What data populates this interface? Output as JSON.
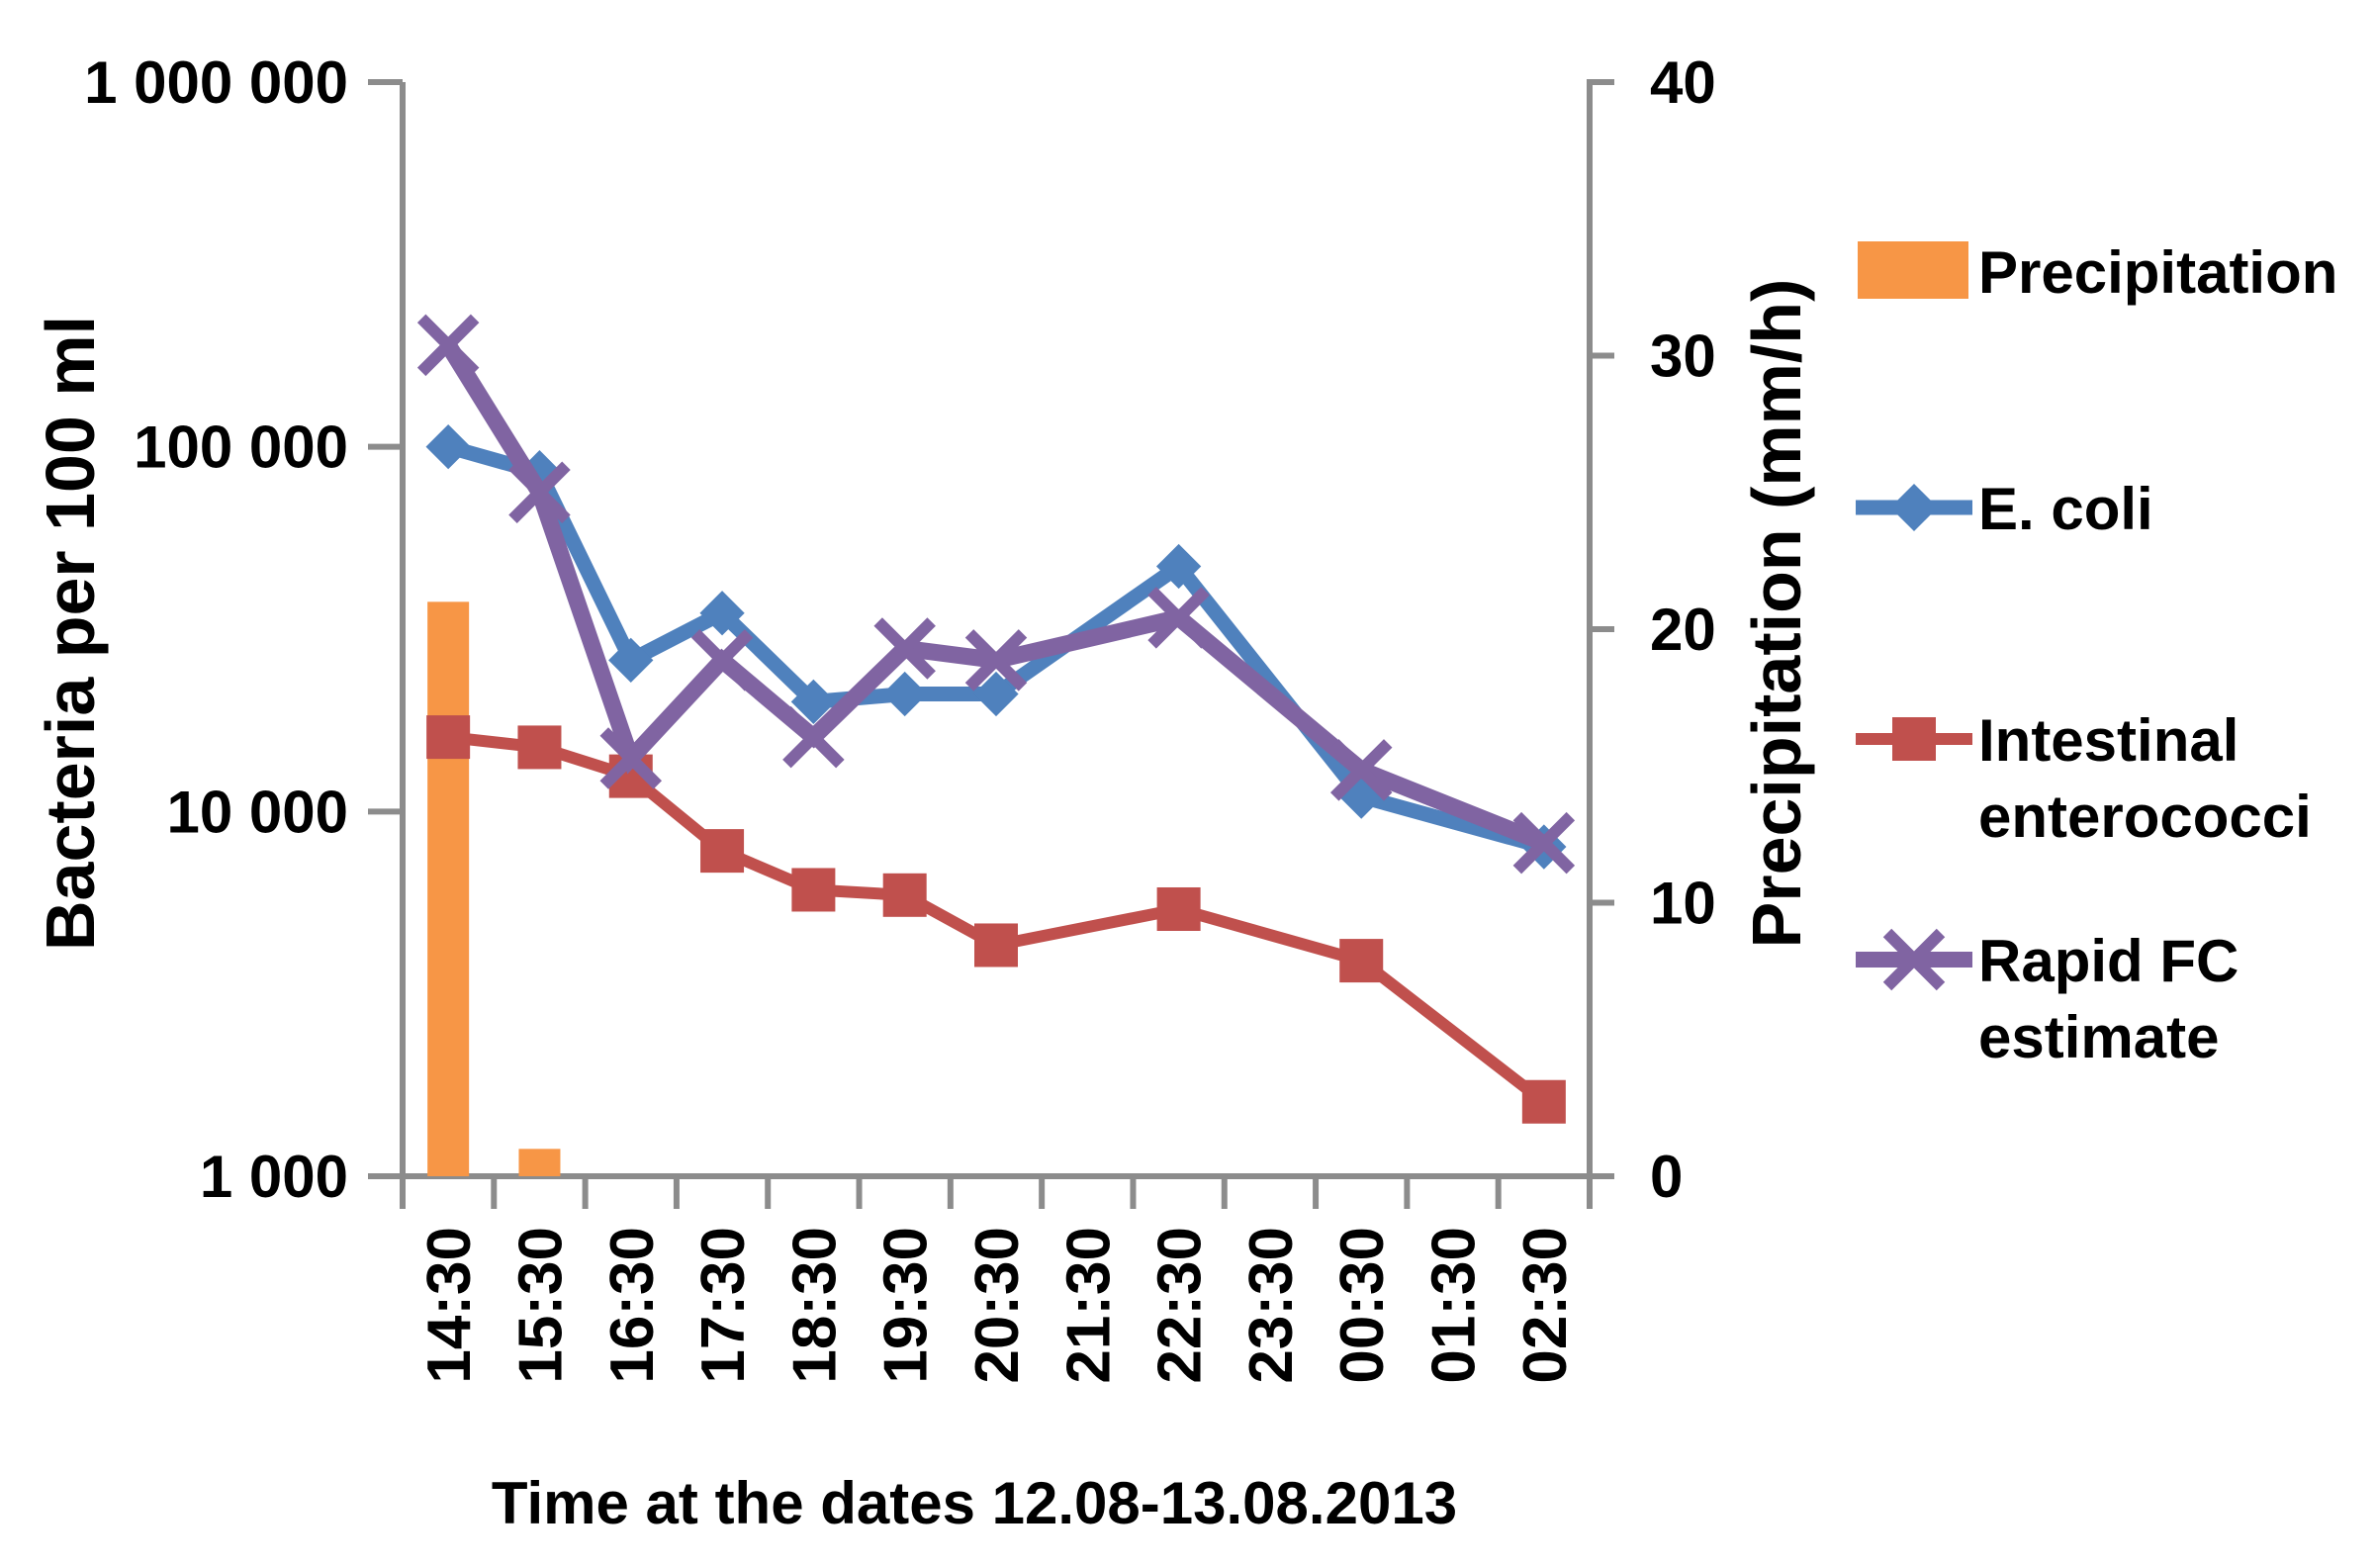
{
  "chart_data": {
    "type": "combo-bar-line",
    "title": "",
    "xlabel": "Time at the dates 12.08-13.08.2013",
    "ylabel_left": "Bacteria per 100 ml",
    "ylabel_right": "Precipitation (mm/h)",
    "left_axis": {
      "scale": "log",
      "min": 1000,
      "max": 1000000,
      "ticks": [
        {
          "value": 1000000,
          "label": "1 000 000"
        },
        {
          "value": 100000,
          "label": "100 000"
        },
        {
          "value": 10000,
          "label": "10 000"
        },
        {
          "value": 1000,
          "label": "1 000"
        }
      ]
    },
    "right_axis": {
      "scale": "linear",
      "min": 0,
      "max": 40,
      "ticks": [
        {
          "value": 40,
          "label": "40"
        },
        {
          "value": 30,
          "label": "30"
        },
        {
          "value": 20,
          "label": "20"
        },
        {
          "value": 10,
          "label": "10"
        },
        {
          "value": 0,
          "label": "0"
        }
      ]
    },
    "categories": [
      "14:30",
      "15:30",
      "16:30",
      "17:30",
      "18:30",
      "19:30",
      "20:30",
      "21:30",
      "22:30",
      "23:30",
      "00:30",
      "01:30",
      "02:30"
    ],
    "grid": "off",
    "legend_position": "right",
    "series": [
      {
        "name": "Precipitation",
        "type": "bar",
        "axis": "right",
        "color": "#F79646",
        "values": [
          21,
          1,
          0,
          0,
          0,
          0,
          0,
          0,
          0,
          0,
          0,
          0,
          0
        ]
      },
      {
        "name": "E. coli",
        "type": "line",
        "marker": "diamond",
        "axis": "left",
        "color": "#4F81BD",
        "values": [
          100000,
          85000,
          26000,
          35000,
          20000,
          21000,
          21000,
          null,
          47000,
          null,
          11000,
          null,
          8000
        ]
      },
      {
        "name": "Intestinal enterococci",
        "type": "line",
        "marker": "square",
        "axis": "left",
        "color": "#C0504D",
        "values": [
          16000,
          15000,
          12500,
          7800,
          6100,
          5900,
          4300,
          null,
          5400,
          null,
          3900,
          null,
          1600
        ]
      },
      {
        "name": "Rapid FC estimate",
        "type": "line",
        "marker": "x",
        "axis": "left",
        "color": "#8064A2",
        "values": [
          190000,
          75000,
          14000,
          26000,
          16000,
          28000,
          26000,
          null,
          34000,
          null,
          13000,
          null,
          8200
        ]
      }
    ],
    "legend": {
      "items": [
        {
          "series": "Precipitation",
          "lines": [
            "Precipitation"
          ]
        },
        {
          "series": "E. coli",
          "lines": [
            "E. coli"
          ]
        },
        {
          "series": "Intestinal enterococci",
          "lines": [
            "Intestinal",
            "enterococci"
          ]
        },
        {
          "series": "Rapid FC estimate",
          "lines": [
            "Rapid FC",
            "estimate"
          ]
        }
      ]
    },
    "axis_color": "#8C8C8C",
    "text_color": "#000000"
  }
}
